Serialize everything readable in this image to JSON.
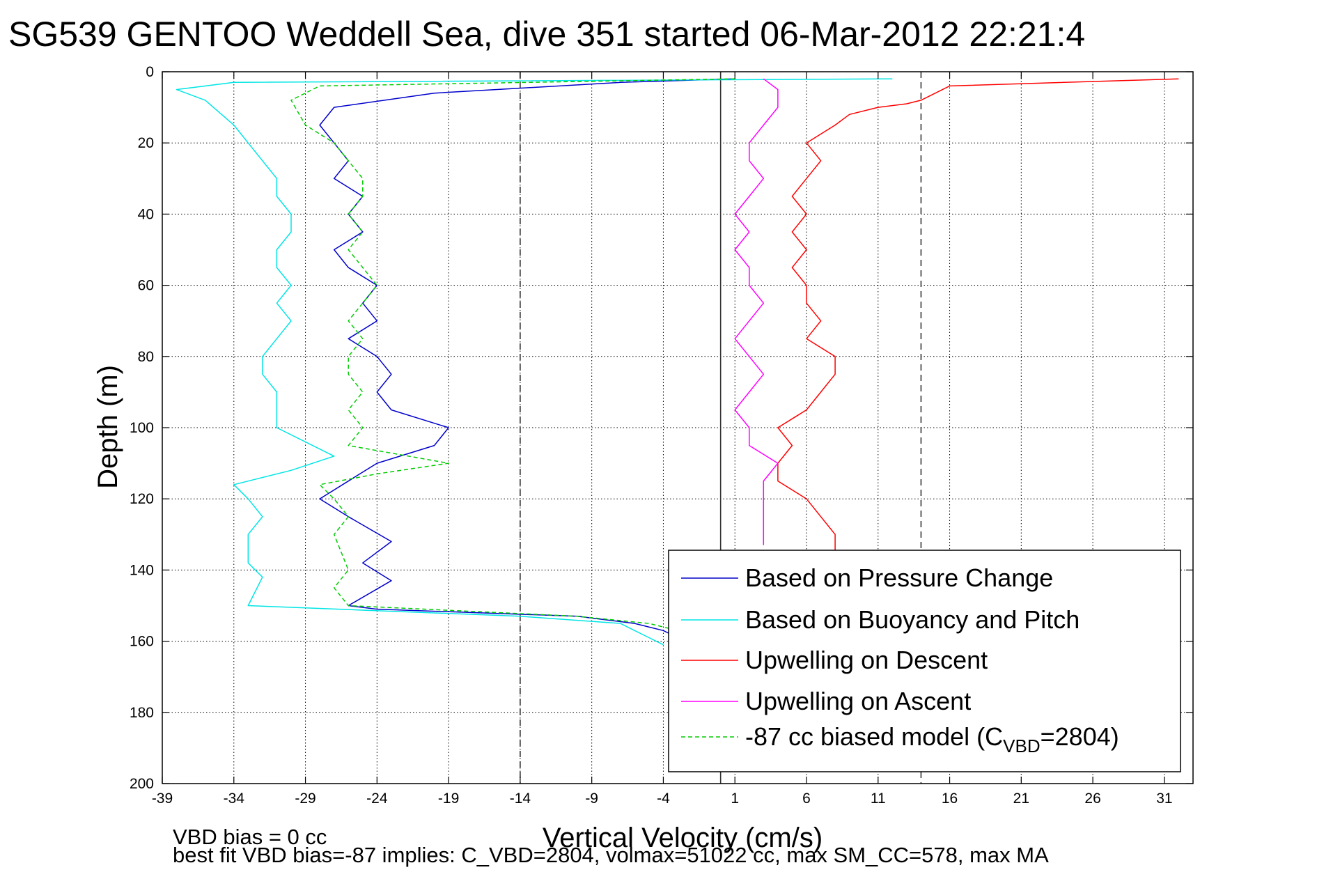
{
  "chart_data": {
    "type": "line",
    "title": "SG539 GENTOO Weddell Sea, dive 351 started 06-Mar-2012 22:21:4",
    "xlabel": "Vertical Velocity (cm/s)",
    "ylabel": "Depth (m)",
    "xlim": [
      -39,
      33
    ],
    "ylim": [
      200,
      0
    ],
    "x_ticks": [
      -39,
      -34,
      -29,
      -24,
      -19,
      -14,
      -9,
      -4,
      1,
      6,
      11,
      16,
      21,
      26,
      31
    ],
    "y_ticks": [
      0,
      20,
      40,
      60,
      80,
      100,
      120,
      140,
      160,
      180,
      200
    ],
    "grid": true,
    "legend_position": "bottom-right",
    "reference_lines": [
      {
        "x": -14,
        "style": "dashed"
      },
      {
        "x": 14,
        "style": "dashed"
      },
      {
        "x": 0,
        "style": "solid"
      }
    ],
    "series": [
      {
        "name": "Based on Pressure Change",
        "color": "#0000cc",
        "style": "solid",
        "x": [
          1,
          -7,
          -20,
          -27,
          -28,
          -27,
          -26,
          -27,
          -25,
          -26,
          -25,
          -27,
          -26,
          -24,
          -25,
          -24,
          -26,
          -24,
          -23,
          -24,
          -23,
          -19,
          -20,
          -24,
          -28,
          -26,
          -23,
          -25,
          -23,
          -26,
          -24,
          -10,
          -6,
          -4,
          -3,
          -2
        ],
        "y": [
          2,
          3,
          6,
          10,
          15,
          20,
          25,
          30,
          35,
          40,
          45,
          50,
          55,
          60,
          65,
          70,
          75,
          80,
          85,
          90,
          95,
          100,
          105,
          110,
          120,
          125,
          132,
          138,
          143,
          150,
          151,
          153,
          155,
          157,
          159,
          160
        ]
      },
      {
        "name": "Based on Buoyancy and Pitch",
        "color": "#00e5e5",
        "style": "solid",
        "x": [
          12,
          -34,
          -38,
          -36,
          -34,
          -33,
          -32,
          -31,
          -31,
          -30,
          -30,
          -31,
          -31,
          -30,
          -31,
          -30,
          -31,
          -32,
          -32,
          -31,
          -31,
          -31,
          -27,
          -30,
          -34,
          -33,
          -32,
          -33,
          -33,
          -32,
          -33,
          -14,
          -7,
          -6,
          -5,
          -4
        ],
        "y": [
          2,
          3,
          5,
          8,
          15,
          20,
          25,
          30,
          35,
          40,
          45,
          50,
          55,
          60,
          65,
          70,
          75,
          80,
          85,
          90,
          95,
          100,
          108,
          112,
          116,
          120,
          125,
          130,
          138,
          142,
          150,
          153,
          155,
          157,
          159,
          161
        ]
      },
      {
        "name": "Upwelling on Descent",
        "color": "#ff0000",
        "style": "solid",
        "x": [
          32,
          16,
          15,
          14,
          13,
          11,
          9,
          8,
          6,
          7,
          6,
          5,
          6,
          5,
          6,
          5,
          6,
          6,
          7,
          6,
          8,
          8,
          7,
          6,
          4,
          5,
          4,
          4,
          6,
          7,
          8,
          8
        ],
        "y": [
          2,
          4,
          6,
          8,
          9,
          10,
          12,
          15,
          20,
          25,
          30,
          35,
          40,
          45,
          50,
          55,
          60,
          65,
          70,
          75,
          80,
          85,
          90,
          95,
          100,
          105,
          110,
          115,
          120,
          125,
          130,
          135
        ]
      },
      {
        "name": "Upwelling on Ascent",
        "color": "#ff00ff",
        "style": "solid",
        "x": [
          3,
          4,
          4,
          3,
          2,
          2,
          3,
          2,
          1,
          2,
          1,
          2,
          2,
          3,
          2,
          1,
          2,
          3,
          2,
          1,
          2,
          2,
          4,
          3,
          3,
          3,
          3
        ],
        "y": [
          2,
          5,
          10,
          15,
          20,
          25,
          30,
          35,
          40,
          45,
          50,
          55,
          60,
          65,
          70,
          75,
          80,
          85,
          90,
          95,
          100,
          105,
          110,
          115,
          120,
          125,
          133
        ]
      },
      {
        "name": "-87 cc biased model (C_VBD=2804)",
        "color": "#00cc00",
        "style": "dashed",
        "x": [
          1,
          -28,
          -30,
          -29,
          -27,
          -26,
          -25,
          -25,
          -26,
          -25,
          -26,
          -25,
          -24,
          -25,
          -26,
          -25,
          -26,
          -26,
          -25,
          -26,
          -25,
          -26,
          -19,
          -24,
          -28,
          -27,
          -26,
          -27,
          -26,
          -27,
          -26,
          -10,
          -5,
          -3
        ],
        "y": [
          2,
          4,
          8,
          15,
          20,
          25,
          30,
          35,
          40,
          45,
          50,
          55,
          60,
          65,
          70,
          75,
          80,
          85,
          90,
          95,
          100,
          105,
          110,
          113,
          116,
          120,
          125,
          130,
          140,
          145,
          150,
          153,
          155,
          157
        ]
      }
    ],
    "legend_symbol_labels": {
      "model_prefix": "-87 cc biased model (C",
      "model_subscript": "VBD",
      "model_suffix": "=2804)"
    },
    "annotations": [
      "VBD bias = 0 cc",
      "best fit VBD bias=-87 implies: C_VBD=2804, volmax=51022 cc, max SM_CC=578, max MA"
    ]
  }
}
